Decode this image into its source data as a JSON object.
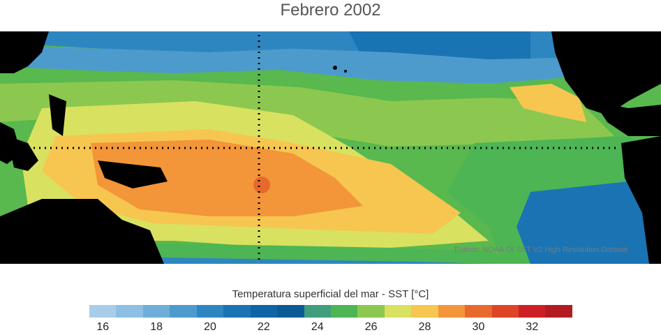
{
  "title": "Febrero 2002",
  "map": {
    "source_note": "Fuente: NOAA OI SST V2 High Resolution Dataset",
    "reference_lines": "dotted equator and dateline guide lines",
    "land_color": "#000000"
  },
  "colorbar": {
    "title": "Temperatura superficial del mar - SST  [°C]",
    "colors": [
      "#a9cde9",
      "#8cbfe3",
      "#6eaed8",
      "#4d9bcd",
      "#2e86c1",
      "#1a73b3",
      "#0e64a4",
      "#0a5a96",
      "#3f9e7d",
      "#4db554",
      "#8cc84f",
      "#d9e160",
      "#f6c650",
      "#f39539",
      "#e76a2d",
      "#de4426",
      "#cf1f26",
      "#b31b22"
    ],
    "tick_labels": [
      "16",
      "18",
      "20",
      "22",
      "24",
      "26",
      "28",
      "30",
      "32"
    ]
  }
}
